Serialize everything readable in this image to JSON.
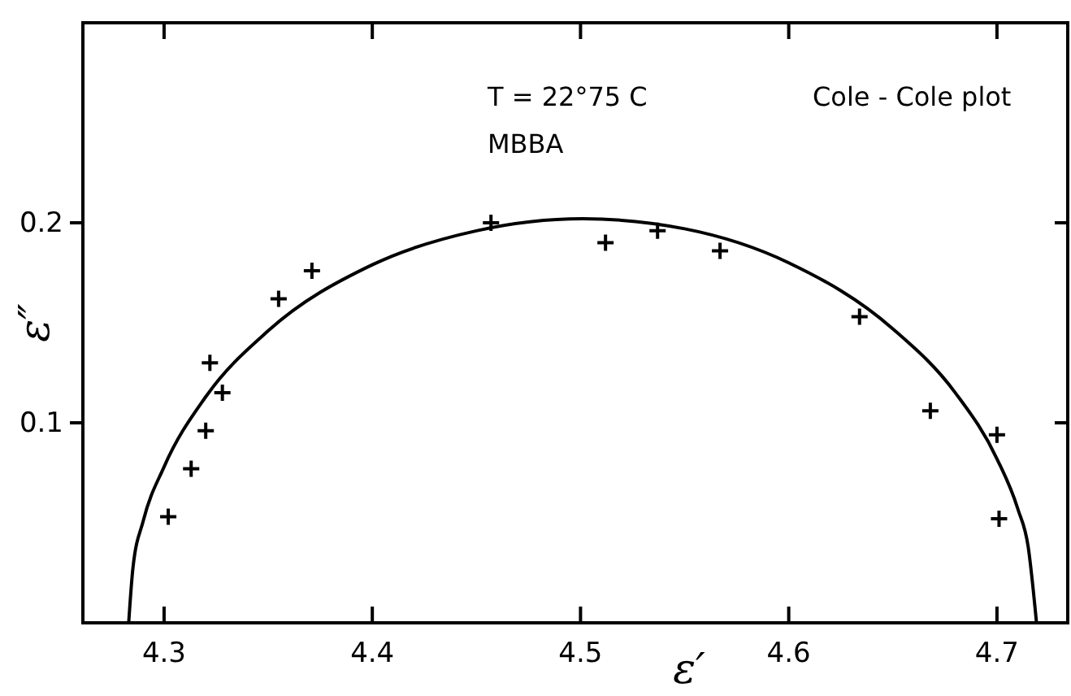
{
  "chart_data": {
    "type": "scatter",
    "xlabel": "ε′",
    "ylabel": "ε″",
    "annotations": [
      "T = 22°75 C",
      "MBBA",
      "Cole - Cole plot"
    ],
    "xlim": [
      4.261,
      4.734
    ],
    "ylim": [
      0,
      0.3
    ],
    "xticks": [
      4.3,
      4.4,
      4.5,
      4.6,
      4.7
    ],
    "yticks": [
      0.1,
      0.2
    ],
    "grid": false,
    "series": [
      {
        "marker": "cross",
        "color": "#000000",
        "x": [
          4.302,
          4.313,
          4.32,
          4.322,
          4.328,
          4.355,
          4.371,
          4.457,
          4.512,
          4.537,
          4.567,
          4.634,
          4.668,
          4.7,
          4.701
        ],
        "values": [
          0.053,
          0.077,
          0.096,
          0.13,
          0.115,
          0.162,
          0.176,
          0.2,
          0.19,
          0.196,
          0.186,
          0.153,
          0.106,
          0.094,
          0.052
        ]
      },
      {
        "type": "line",
        "marker": "none",
        "color": "#000000",
        "line_style": "solid",
        "x": [
          4.283,
          4.285,
          4.29,
          4.3,
          4.32,
          4.35,
          4.4,
          4.45,
          4.501,
          4.55,
          4.6,
          4.65,
          4.68,
          4.7,
          4.71,
          4.715,
          4.719
        ],
        "values": [
          0,
          0.027,
          0.051,
          0.078,
          0.113,
          0.146,
          0.179,
          0.196,
          0.202,
          0.197,
          0.18,
          0.147,
          0.115,
          0.082,
          0.057,
          0.038,
          0
        ]
      }
    ]
  }
}
